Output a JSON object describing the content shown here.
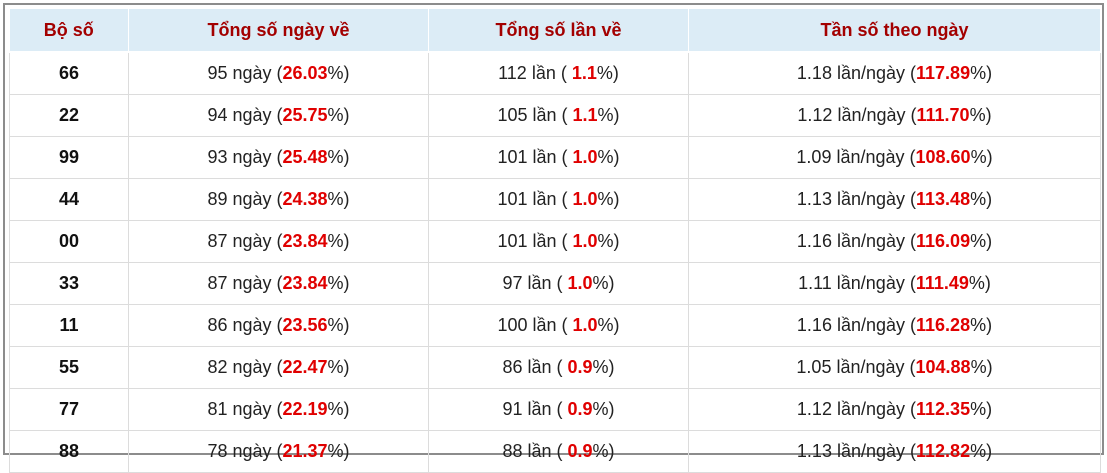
{
  "table": {
    "header": [
      "Bộ số",
      "Tổng số ngày về",
      "Tổng số lần về",
      "Tần số theo ngày"
    ],
    "rows": [
      [
        "66",
        [
          "95 ngày (",
          "26.03",
          "%)"
        ],
        [
          "112 lần ( ",
          "1.1",
          "%)"
        ],
        [
          "1.18 lần/ngày (",
          "117.89",
          "%)"
        ]
      ],
      [
        "22",
        [
          "94 ngày (",
          "25.75",
          "%)"
        ],
        [
          "105 lần ( ",
          "1.1",
          "%)"
        ],
        [
          "1.12 lần/ngày (",
          "111.70",
          "%)"
        ]
      ],
      [
        "99",
        [
          "93 ngày (",
          "25.48",
          "%)"
        ],
        [
          "101 lần ( ",
          "1.0",
          "%)"
        ],
        [
          "1.09 lần/ngày (",
          "108.60",
          "%)"
        ]
      ],
      [
        "44",
        [
          "89 ngày (",
          "24.38",
          "%)"
        ],
        [
          "101 lần ( ",
          "1.0",
          "%)"
        ],
        [
          "1.13 lần/ngày (",
          "113.48",
          "%)"
        ]
      ],
      [
        "00",
        [
          "87 ngày (",
          "23.84",
          "%)"
        ],
        [
          "101 lần ( ",
          "1.0",
          "%)"
        ],
        [
          "1.16 lần/ngày (",
          "116.09",
          "%)"
        ]
      ],
      [
        "33",
        [
          "87 ngày (",
          "23.84",
          "%)"
        ],
        [
          "97 lần ( ",
          "1.0",
          "%)"
        ],
        [
          "1.11 lần/ngày (",
          "111.49",
          "%)"
        ]
      ],
      [
        "11",
        [
          "86 ngày (",
          "23.56",
          "%)"
        ],
        [
          "100 lần ( ",
          "1.0",
          "%)"
        ],
        [
          "1.16 lần/ngày (",
          "116.28",
          "%)"
        ]
      ],
      [
        "55",
        [
          "82 ngày (",
          "22.47",
          "%)"
        ],
        [
          "86 lần ( ",
          "0.9",
          "%)"
        ],
        [
          "1.05 lần/ngày (",
          "104.88",
          "%)"
        ]
      ],
      [
        "77",
        [
          "81 ngày (",
          "22.19",
          "%)"
        ],
        [
          "91 lần ( ",
          "0.9",
          "%)"
        ],
        [
          "1.12 lần/ngày (",
          "112.35",
          "%)"
        ]
      ],
      [
        "88",
        [
          "78 ngày (",
          "21.37",
          "%)"
        ],
        [
          "88 lần ( ",
          "0.9",
          "%)"
        ],
        [
          "1.13 lần/ngày (",
          "112.82",
          "%)"
        ]
      ]
    ]
  }
}
